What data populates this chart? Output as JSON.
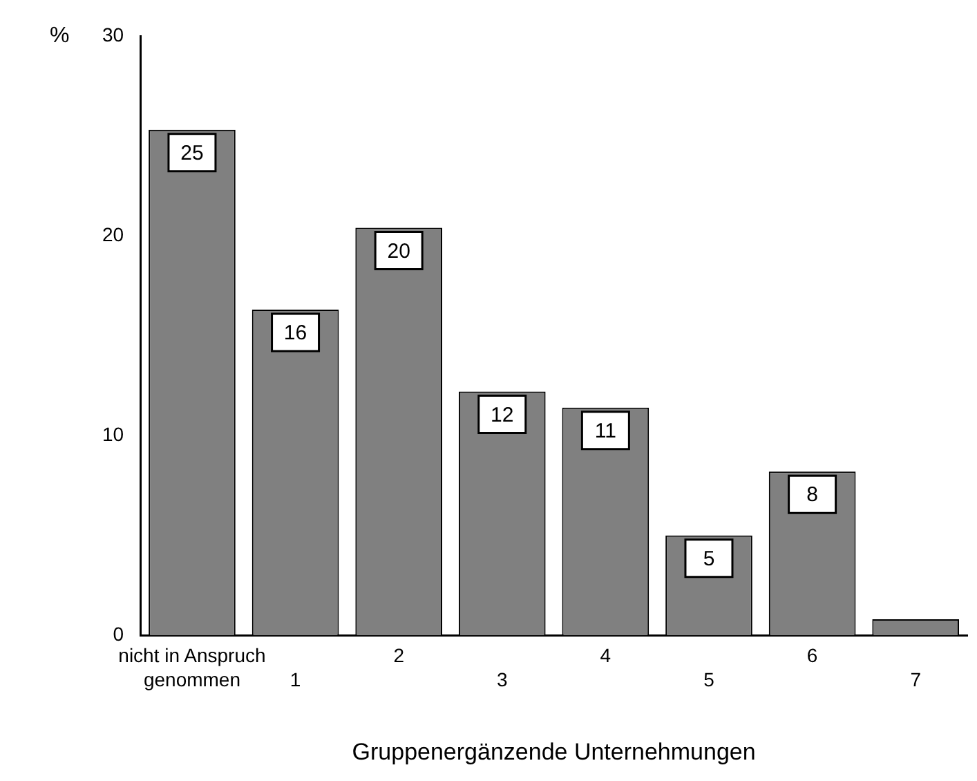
{
  "chart_data": {
    "type": "bar",
    "ylabel": "%",
    "xlabel": "Gruppenergänzende Unternehmungen",
    "categories": [
      "nicht in Anspruch genommen",
      "1",
      "2",
      "3",
      "4",
      "5",
      "6",
      "7"
    ],
    "values": [
      25.3,
      16.3,
      20.4,
      12.2,
      11.4,
      5.0,
      8.2,
      0.8
    ],
    "value_labels": [
      "25",
      "16",
      "20",
      "12",
      "11",
      "5",
      "8",
      null
    ],
    "color": "#808080",
    "ylim": [
      0,
      30
    ],
    "yticks": [
      0,
      10,
      20,
      30
    ],
    "grid": false,
    "legend": false
  }
}
